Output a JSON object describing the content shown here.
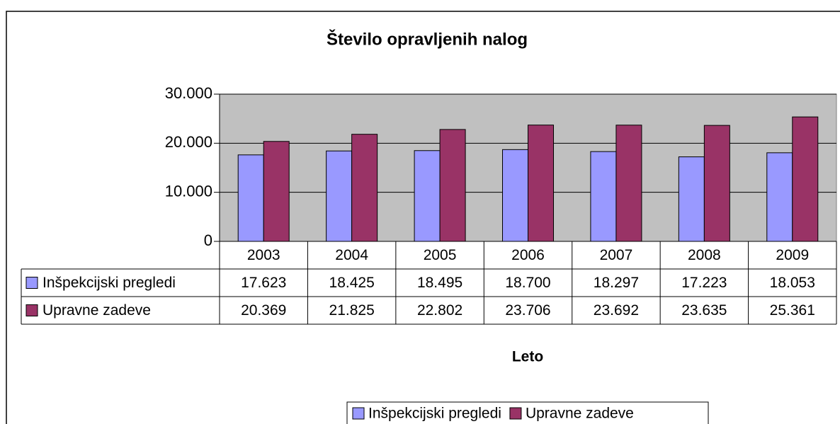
{
  "chart_data": {
    "type": "bar",
    "title": "Število opravljenih nalog",
    "x_label": "Leto",
    "categories": [
      "2003",
      "2004",
      "2005",
      "2006",
      "2007",
      "2008",
      "2009"
    ],
    "series": [
      {
        "name": "Inšpekcijski pregledi",
        "color": "#9999ff",
        "values": [
          17623,
          18425,
          18495,
          18700,
          18297,
          17223,
          18053
        ],
        "value_labels": [
          "17.623",
          "18.425",
          "18.495",
          "18.700",
          "18.297",
          "17.223",
          "18.053"
        ]
      },
      {
        "name": "Upravne zadeve",
        "color": "#993366",
        "values": [
          20369,
          21825,
          22802,
          23706,
          23692,
          23635,
          25361
        ],
        "value_labels": [
          "20.369",
          "21.825",
          "22.802",
          "23.706",
          "23.692",
          "23.635",
          "25.361"
        ]
      }
    ],
    "ylim": [
      0,
      30000
    ],
    "yticks": [
      0,
      {
        "value": 10000,
        "label": "10.000"
      },
      {
        "value": 20000,
        "label": "20.000"
      },
      {
        "value": 30000,
        "label": "30.000"
      }
    ],
    "grid": true,
    "legend": "bottom",
    "plot_background": "#c0c0c0"
  }
}
